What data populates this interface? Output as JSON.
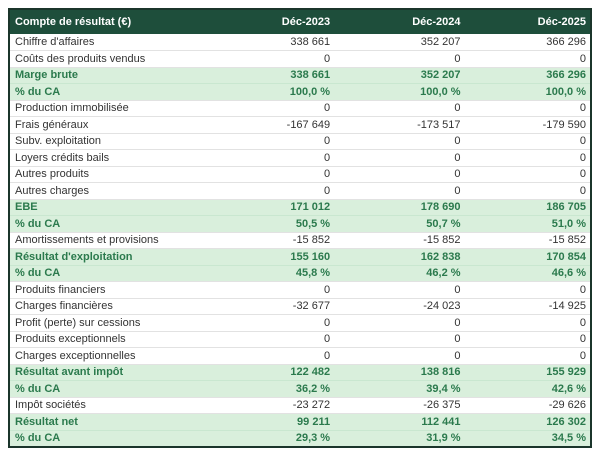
{
  "colors": {
    "header_bg": "#1e4e3b",
    "header_text": "#ffffff",
    "highlight_bg": "#d9efdc",
    "highlight_text": "#2b7a4d",
    "row_text": "#333333",
    "grid_line": "#e2e2e2",
    "outer_border": "#1b352b"
  },
  "table": {
    "title": "Compte de résultat (€)",
    "columns": [
      "Déc-2023",
      "Déc-2024",
      "Déc-2025"
    ],
    "rows": [
      {
        "label": "Chiffre d'affaires",
        "values": [
          "338 661",
          "352 207",
          "366 296"
        ],
        "highlight": false
      },
      {
        "label": "Coûts des produits vendus",
        "values": [
          "0",
          "0",
          "0"
        ],
        "highlight": false
      },
      {
        "label": "Marge brute",
        "values": [
          "338 661",
          "352 207",
          "366 296"
        ],
        "highlight": true
      },
      {
        "label": "% du CA",
        "values": [
          "100,0 %",
          "100,0 %",
          "100,0 %"
        ],
        "highlight": true
      },
      {
        "label": "Production immobilisée",
        "values": [
          "0",
          "0",
          "0"
        ],
        "highlight": false
      },
      {
        "label": "Frais généraux",
        "values": [
          "-167 649",
          "-173 517",
          "-179 590"
        ],
        "highlight": false
      },
      {
        "label": "Subv. exploitation",
        "values": [
          "0",
          "0",
          "0"
        ],
        "highlight": false
      },
      {
        "label": "Loyers crédits bails",
        "values": [
          "0",
          "0",
          "0"
        ],
        "highlight": false
      },
      {
        "label": "Autres produits",
        "values": [
          "0",
          "0",
          "0"
        ],
        "highlight": false
      },
      {
        "label": "Autres charges",
        "values": [
          "0",
          "0",
          "0"
        ],
        "highlight": false
      },
      {
        "label": "EBE",
        "values": [
          "171 012",
          "178 690",
          "186 705"
        ],
        "highlight": true
      },
      {
        "label": "% du CA",
        "values": [
          "50,5 %",
          "50,7 %",
          "51,0 %"
        ],
        "highlight": true
      },
      {
        "label": "Amortissements et provisions",
        "values": [
          "-15 852",
          "-15 852",
          "-15 852"
        ],
        "highlight": false
      },
      {
        "label": "Résultat d'exploitation",
        "values": [
          "155 160",
          "162 838",
          "170 854"
        ],
        "highlight": true
      },
      {
        "label": "% du CA",
        "values": [
          "45,8 %",
          "46,2 %",
          "46,6 %"
        ],
        "highlight": true
      },
      {
        "label": "Produits financiers",
        "values": [
          "0",
          "0",
          "0"
        ],
        "highlight": false
      },
      {
        "label": "Charges financières",
        "values": [
          "-32 677",
          "-24 023",
          "-14 925"
        ],
        "highlight": false
      },
      {
        "label": "Profit (perte) sur cessions",
        "values": [
          "0",
          "0",
          "0"
        ],
        "highlight": false
      },
      {
        "label": "Produits exceptionnels",
        "values": [
          "0",
          "0",
          "0"
        ],
        "highlight": false
      },
      {
        "label": "Charges exceptionnelles",
        "values": [
          "0",
          "0",
          "0"
        ],
        "highlight": false
      },
      {
        "label": "Résultat avant impôt",
        "values": [
          "122 482",
          "138 816",
          "155 929"
        ],
        "highlight": true
      },
      {
        "label": "% du CA",
        "values": [
          "36,2 %",
          "39,4 %",
          "42,6 %"
        ],
        "highlight": true
      },
      {
        "label": "Impôt sociétés",
        "values": [
          "-23 272",
          "-26 375",
          "-29 626"
        ],
        "highlight": false
      },
      {
        "label": "Résultat net",
        "values": [
          "99 211",
          "112 441",
          "126 302"
        ],
        "highlight": true
      },
      {
        "label": "% du CA",
        "values": [
          "29,3 %",
          "31,9 %",
          "34,5 %"
        ],
        "highlight": true
      }
    ]
  }
}
